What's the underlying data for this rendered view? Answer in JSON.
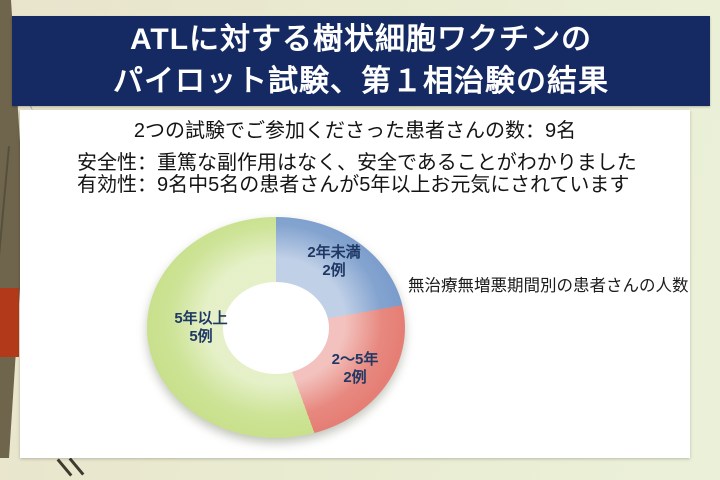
{
  "slide": {
    "title": {
      "line1": "ATLに対する樹状細胞ワクチンの",
      "line2": "パイロット試験、第１相治験の結果"
    },
    "body": {
      "participants": "2つの試験でご参加くださった患者さんの数：9名",
      "safety": "安全性：重篤な副作用はなく、安全であることがわかりました",
      "efficacy": "有効性：9名中5名の患者さんが5年以上お元気にされています"
    },
    "chart_caption": "無治療無増悪期間別の患者さんの人数"
  },
  "chart_data": {
    "type": "pie",
    "subtype": "donut",
    "title": "無治療無増悪期間別の患者さんの人数",
    "categories": [
      "2年未満",
      "2～5年",
      "5年以上"
    ],
    "values": [
      2,
      2,
      5
    ],
    "unit": "例",
    "total": 9,
    "value_labels": [
      "2例",
      "2例",
      "5例"
    ],
    "colors": [
      "#7397c9",
      "#e4786e",
      "#c6df87"
    ],
    "label_color": "#1f3864",
    "start_angle_deg": 0,
    "direction": "clockwise",
    "legend_position": "none"
  },
  "theme": {
    "banner_navy": "#152a63",
    "accent_red": "#b23a1a",
    "strip_olive": "#6f654d"
  }
}
